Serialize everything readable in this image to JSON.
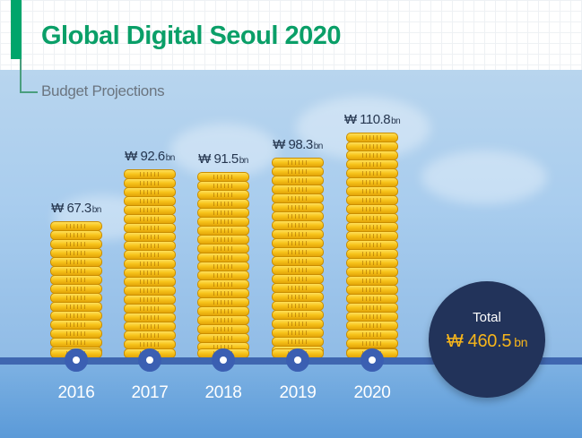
{
  "header": {
    "title": "Global Digital Seoul 2020",
    "subtitle": "Budget Projections",
    "accent_color": "#00a56b"
  },
  "chart_data": {
    "type": "bar",
    "title": "Global Digital Seoul 2020",
    "subtitle": "Budget Projections",
    "categories": [
      "2016",
      "2017",
      "2018",
      "2019",
      "2020"
    ],
    "values": [
      67.3,
      92.6,
      91.5,
      98.3,
      110.8
    ],
    "value_labels": [
      "₩ 67.3",
      "₩ 92.6",
      "₩ 91.5",
      "₩ 98.3",
      "₩ 110.8"
    ],
    "unit": "bn",
    "bar_style": "stacked-coins",
    "bar_color": "#f7c31a",
    "axis_color": "#3f67b0",
    "ylim": [
      0,
      110.8
    ],
    "grid": false,
    "legend": "none"
  },
  "total": {
    "label": "Total",
    "value": "₩ 460.5",
    "unit": "bn"
  }
}
